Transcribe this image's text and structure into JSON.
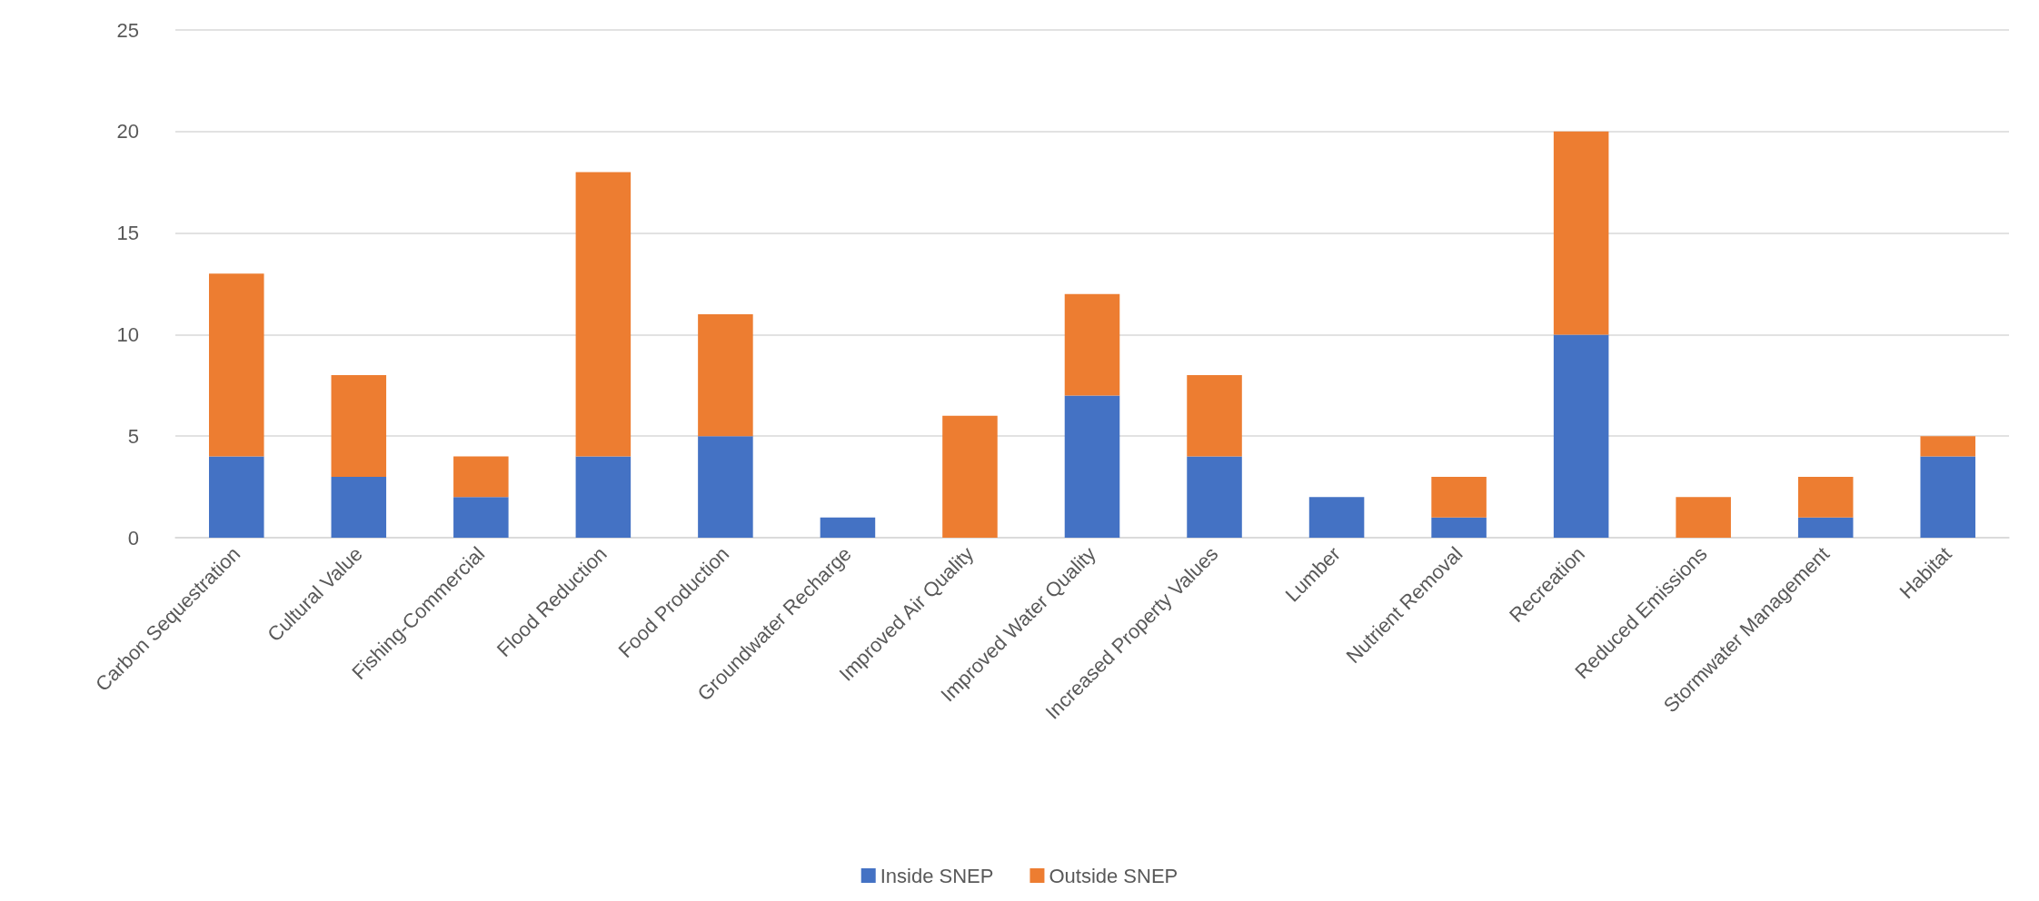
{
  "chart_data": {
    "type": "bar",
    "stacked": true,
    "categories": [
      "Carbon Sequestration",
      "Cultural Value",
      "Fishing-Commercial",
      "Flood Reduction",
      "Food Production",
      "Groundwater Recharge",
      "Improved Air Quality",
      "Improved Water Quality",
      "Increased Property Values",
      "Lumber",
      "Nutrient Removal",
      "Recreation",
      "Reduced Emissions",
      "Stormwater Management",
      "Habitat"
    ],
    "series": [
      {
        "name": "Inside SNEP",
        "color": "#4472c4",
        "values": [
          4,
          3,
          2,
          4,
          5,
          1,
          0,
          7,
          4,
          2,
          1,
          10,
          0,
          1,
          4
        ]
      },
      {
        "name": "Outside SNEP",
        "color": "#ed7d31",
        "values": [
          9,
          5,
          2,
          14,
          6,
          0,
          6,
          5,
          4,
          0,
          2,
          10,
          2,
          2,
          1
        ]
      }
    ],
    "ylim": [
      0,
      25
    ],
    "yticks": [
      0,
      5,
      10,
      15,
      20,
      25
    ],
    "grid": "y",
    "legend": "bottom"
  }
}
